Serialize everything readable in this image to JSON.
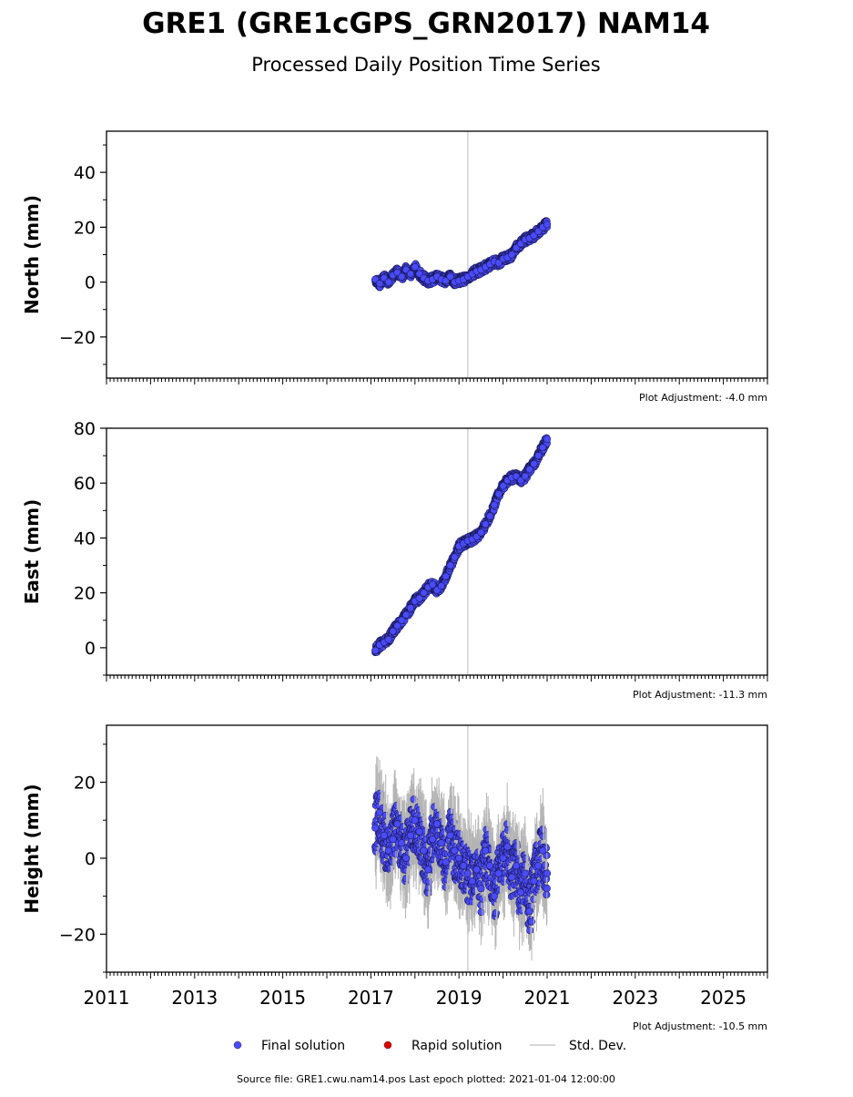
{
  "chart_data": {
    "title": "GRE1 (GRE1cGPS_GRN2017) NAM14",
    "subtitle": "Processed Daily Position Time Series",
    "type": "scatter",
    "xlim": [
      2011.0,
      2026.0
    ],
    "x_ticks": [
      2011,
      2013,
      2015,
      2017,
      2019,
      2021,
      2023,
      2025
    ],
    "marker_color": "#4a4aff",
    "rapid_color": "#e00000",
    "stddev_color": "#b4b4b4",
    "vertical_line_x": 2019.2,
    "panels": [
      {
        "ylabel": "North (mm)",
        "ylim": [
          -35,
          55
        ],
        "y_ticks": [
          -20,
          0,
          20,
          40
        ],
        "tick_labels": [
          "−20",
          "0",
          "20",
          "40"
        ],
        "adjustment": "Plot Adjustment: -4.0 mm",
        "series": [
          {
            "x": 2017.1,
            "y": 1.0,
            "err": 0.6
          },
          {
            "x": 2017.2,
            "y": -0.5,
            "err": 0.6
          },
          {
            "x": 2017.3,
            "y": 1.5,
            "err": 0.6
          },
          {
            "x": 2017.4,
            "y": 0.0,
            "err": 0.6
          },
          {
            "x": 2017.5,
            "y": 2.5,
            "err": 0.6
          },
          {
            "x": 2017.6,
            "y": 3.5,
            "err": 0.6
          },
          {
            "x": 2017.7,
            "y": 2.0,
            "err": 0.6
          },
          {
            "x": 2017.8,
            "y": 4.5,
            "err": 0.6
          },
          {
            "x": 2017.9,
            "y": 3.0,
            "err": 0.6
          },
          {
            "x": 2018.0,
            "y": 5.5,
            "err": 0.6
          },
          {
            "x": 2018.1,
            "y": 3.0,
            "err": 0.6
          },
          {
            "x": 2018.2,
            "y": 1.5,
            "err": 0.6
          },
          {
            "x": 2018.3,
            "y": 0.5,
            "err": 0.6
          },
          {
            "x": 2018.4,
            "y": 1.0,
            "err": 0.6
          },
          {
            "x": 2018.5,
            "y": 2.0,
            "err": 0.6
          },
          {
            "x": 2018.6,
            "y": 1.0,
            "err": 0.6
          },
          {
            "x": 2018.7,
            "y": 0.5,
            "err": 0.6
          },
          {
            "x": 2018.8,
            "y": 2.0,
            "err": 0.6
          },
          {
            "x": 2018.9,
            "y": 0.0,
            "err": 0.6
          },
          {
            "x": 2019.0,
            "y": 0.5,
            "err": 0.6
          },
          {
            "x": 2019.1,
            "y": 1.0,
            "err": 0.6
          },
          {
            "x": 2019.2,
            "y": 2.0,
            "err": 0.6
          },
          {
            "x": 2019.3,
            "y": 3.0,
            "err": 0.6
          },
          {
            "x": 2019.4,
            "y": 4.0,
            "err": 0.6
          },
          {
            "x": 2019.5,
            "y": 4.5,
            "err": 0.6
          },
          {
            "x": 2019.6,
            "y": 5.5,
            "err": 0.6
          },
          {
            "x": 2019.7,
            "y": 6.5,
            "err": 0.6
          },
          {
            "x": 2019.8,
            "y": 7.5,
            "err": 0.6
          },
          {
            "x": 2019.9,
            "y": 7.0,
            "err": 0.6
          },
          {
            "x": 2020.0,
            "y": 8.5,
            "err": 0.6
          },
          {
            "x": 2020.1,
            "y": 9.0,
            "err": 0.6
          },
          {
            "x": 2020.2,
            "y": 10.0,
            "err": 0.6
          },
          {
            "x": 2020.3,
            "y": 12.5,
            "err": 0.6
          },
          {
            "x": 2020.4,
            "y": 14.0,
            "err": 0.6
          },
          {
            "x": 2020.5,
            "y": 15.5,
            "err": 0.6
          },
          {
            "x": 2020.6,
            "y": 16.0,
            "err": 0.6
          },
          {
            "x": 2020.7,
            "y": 17.0,
            "err": 0.6
          },
          {
            "x": 2020.8,
            "y": 18.5,
            "err": 0.6
          },
          {
            "x": 2020.9,
            "y": 20.0,
            "err": 0.6
          },
          {
            "x": 2021.0,
            "y": 21.0,
            "err": 0.6
          }
        ]
      },
      {
        "ylabel": "East (mm)",
        "ylim": [
          -10,
          80
        ],
        "y_ticks": [
          0,
          20,
          40,
          60,
          80
        ],
        "tick_labels": [
          "0",
          "20",
          "40",
          "60",
          "80"
        ],
        "adjustment": "Plot Adjustment: -11.3 mm",
        "series": [
          {
            "x": 2017.1,
            "y": -1.0,
            "err": 0.6
          },
          {
            "x": 2017.2,
            "y": 1.0,
            "err": 0.6
          },
          {
            "x": 2017.3,
            "y": 2.0,
            "err": 0.6
          },
          {
            "x": 2017.4,
            "y": 3.0,
            "err": 0.6
          },
          {
            "x": 2017.5,
            "y": 6.0,
            "err": 0.6
          },
          {
            "x": 2017.6,
            "y": 8.0,
            "err": 0.6
          },
          {
            "x": 2017.7,
            "y": 10.0,
            "err": 0.6
          },
          {
            "x": 2017.8,
            "y": 12.0,
            "err": 0.6
          },
          {
            "x": 2017.9,
            "y": 14.5,
            "err": 0.6
          },
          {
            "x": 2018.0,
            "y": 17.0,
            "err": 0.6
          },
          {
            "x": 2018.1,
            "y": 18.0,
            "err": 0.6
          },
          {
            "x": 2018.2,
            "y": 20.0,
            "err": 0.6
          },
          {
            "x": 2018.3,
            "y": 22.0,
            "err": 0.6
          },
          {
            "x": 2018.4,
            "y": 23.0,
            "err": 0.6
          },
          {
            "x": 2018.5,
            "y": 21.0,
            "err": 0.6
          },
          {
            "x": 2018.6,
            "y": 22.5,
            "err": 0.6
          },
          {
            "x": 2018.7,
            "y": 26.0,
            "err": 0.6
          },
          {
            "x": 2018.8,
            "y": 30.0,
            "err": 0.6
          },
          {
            "x": 2018.9,
            "y": 33.0,
            "err": 0.6
          },
          {
            "x": 2019.0,
            "y": 37.0,
            "err": 0.6
          },
          {
            "x": 2019.1,
            "y": 38.0,
            "err": 0.6
          },
          {
            "x": 2019.2,
            "y": 39.0,
            "err": 0.6
          },
          {
            "x": 2019.3,
            "y": 39.5,
            "err": 0.6
          },
          {
            "x": 2019.4,
            "y": 40.5,
            "err": 0.6
          },
          {
            "x": 2019.5,
            "y": 42.0,
            "err": 0.6
          },
          {
            "x": 2019.6,
            "y": 45.0,
            "err": 0.6
          },
          {
            "x": 2019.7,
            "y": 48.0,
            "err": 0.6
          },
          {
            "x": 2019.8,
            "y": 52.0,
            "err": 0.6
          },
          {
            "x": 2019.9,
            "y": 56.0,
            "err": 0.6
          },
          {
            "x": 2020.0,
            "y": 59.0,
            "err": 0.6
          },
          {
            "x": 2020.1,
            "y": 61.0,
            "err": 0.6
          },
          {
            "x": 2020.2,
            "y": 62.0,
            "err": 0.6
          },
          {
            "x": 2020.3,
            "y": 62.5,
            "err": 0.6
          },
          {
            "x": 2020.4,
            "y": 61.0,
            "err": 0.6
          },
          {
            "x": 2020.5,
            "y": 62.5,
            "err": 0.6
          },
          {
            "x": 2020.6,
            "y": 65.0,
            "err": 0.6
          },
          {
            "x": 2020.7,
            "y": 67.0,
            "err": 0.6
          },
          {
            "x": 2020.8,
            "y": 70.0,
            "err": 0.6
          },
          {
            "x": 2020.9,
            "y": 73.0,
            "err": 0.6
          },
          {
            "x": 2021.0,
            "y": 76.0,
            "err": 0.6
          }
        ]
      },
      {
        "ylabel": "Height (mm)",
        "ylim": [
          -30,
          35
        ],
        "y_ticks": [
          -20,
          0,
          20
        ],
        "tick_labels": [
          "−20",
          "0",
          "20"
        ],
        "adjustment": "Plot Adjustment: -10.5 mm",
        "series": [
          {
            "x": 2017.1,
            "y": 8.0,
            "err": 5.0
          },
          {
            "x": 2017.2,
            "y": 12.0,
            "err": 5.0
          },
          {
            "x": 2017.3,
            "y": 6.0,
            "err": 5.0
          },
          {
            "x": 2017.4,
            "y": 2.0,
            "err": 5.0
          },
          {
            "x": 2017.5,
            "y": 5.0,
            "err": 5.0
          },
          {
            "x": 2017.6,
            "y": 9.0,
            "err": 5.0
          },
          {
            "x": 2017.7,
            "y": 4.0,
            "err": 5.0
          },
          {
            "x": 2017.8,
            "y": 0.0,
            "err": 5.0
          },
          {
            "x": 2017.9,
            "y": 6.0,
            "err": 5.0
          },
          {
            "x": 2018.0,
            "y": 10.0,
            "err": 5.0
          },
          {
            "x": 2018.1,
            "y": 7.0,
            "err": 5.0
          },
          {
            "x": 2018.2,
            "y": 2.0,
            "err": 5.0
          },
          {
            "x": 2018.3,
            "y": -3.0,
            "err": 5.0
          },
          {
            "x": 2018.4,
            "y": 5.0,
            "err": 5.0
          },
          {
            "x": 2018.5,
            "y": 9.0,
            "err": 5.0
          },
          {
            "x": 2018.6,
            "y": 4.0,
            "err": 5.0
          },
          {
            "x": 2018.7,
            "y": -1.0,
            "err": 5.0
          },
          {
            "x": 2018.8,
            "y": 6.0,
            "err": 5.0
          },
          {
            "x": 2018.9,
            "y": 2.0,
            "err": 5.0
          },
          {
            "x": 2019.0,
            "y": 0.0,
            "err": 5.0
          },
          {
            "x": 2019.1,
            "y": -2.0,
            "err": 5.0
          },
          {
            "x": 2019.2,
            "y": -4.0,
            "err": 5.0
          },
          {
            "x": 2019.3,
            "y": -6.0,
            "err": 5.0
          },
          {
            "x": 2019.4,
            "y": -3.0,
            "err": 5.0
          },
          {
            "x": 2019.5,
            "y": -8.0,
            "err": 5.0
          },
          {
            "x": 2019.6,
            "y": 2.0,
            "err": 5.0
          },
          {
            "x": 2019.7,
            "y": -2.0,
            "err": 5.0
          },
          {
            "x": 2019.8,
            "y": -10.0,
            "err": 5.0
          },
          {
            "x": 2019.9,
            "y": -4.0,
            "err": 5.0
          },
          {
            "x": 2020.0,
            "y": 0.0,
            "err": 5.0
          },
          {
            "x": 2020.1,
            "y": 3.0,
            "err": 5.0
          },
          {
            "x": 2020.2,
            "y": -5.0,
            "err": 5.0
          },
          {
            "x": 2020.3,
            "y": -2.0,
            "err": 5.0
          },
          {
            "x": 2020.4,
            "y": -9.0,
            "err": 5.0
          },
          {
            "x": 2020.5,
            "y": -4.0,
            "err": 5.0
          },
          {
            "x": 2020.6,
            "y": -14.0,
            "err": 5.0
          },
          {
            "x": 2020.7,
            "y": -6.0,
            "err": 5.0
          },
          {
            "x": 2020.8,
            "y": -2.0,
            "err": 5.0
          },
          {
            "x": 2020.9,
            "y": 2.0,
            "err": 5.0
          },
          {
            "x": 2021.0,
            "y": -4.0,
            "err": 5.0
          }
        ]
      }
    ],
    "legend": [
      {
        "label": "Final solution",
        "kind": "marker",
        "color": "#4a4aff"
      },
      {
        "label": "Rapid solution",
        "kind": "marker",
        "color": "#e00000"
      },
      {
        "label": "Std. Dev.",
        "kind": "line",
        "color": "#c8c8c8"
      }
    ],
    "source": "Source file: GRE1.cwu.nam14.pos  Last epoch plotted: 2021-01-04 12:00:00"
  }
}
